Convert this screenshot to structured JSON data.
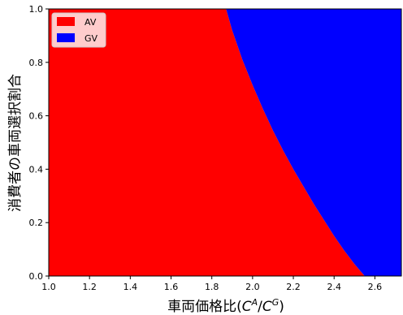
{
  "chart_data": {
    "type": "area",
    "xlabel": "車両価格比(C^A/C^G)",
    "xlabel_parts": {
      "base": "車両価格比(",
      "c1": "C",
      "sup1": "A",
      "slash": "/",
      "c2": "C",
      "sup2": "G",
      "close": ")"
    },
    "ylabel": "消費者の車両選択割合",
    "xlim": [
      1.0,
      2.73
    ],
    "ylim": [
      0.0,
      1.0
    ],
    "x_ticks": [
      "1.0",
      "1.2",
      "1.4",
      "1.6",
      "1.8",
      "2.0",
      "2.2",
      "2.4",
      "2.6"
    ],
    "y_ticks": [
      "0.0",
      "0.2",
      "0.4",
      "0.6",
      "0.8",
      "1.0"
    ],
    "grid": false,
    "legend_position": "top-left",
    "series": [
      {
        "name": "AV",
        "color": "#ff0000"
      },
      {
        "name": "GV",
        "color": "#0000ff"
      }
    ],
    "boundary": {
      "description_points": "y value of AV/GV boundary vs x",
      "x": [
        1.0,
        1.87,
        1.9,
        1.95,
        2.0,
        2.05,
        2.1,
        2.15,
        2.2,
        2.25,
        2.3,
        2.35,
        2.4,
        2.45,
        2.5,
        2.55,
        2.73
      ],
      "y": [
        1.0,
        1.0,
        0.92,
        0.81,
        0.715,
        0.627,
        0.545,
        0.47,
        0.4,
        0.335,
        0.27,
        0.21,
        0.15,
        0.095,
        0.045,
        0.0,
        0.0
      ]
    }
  }
}
